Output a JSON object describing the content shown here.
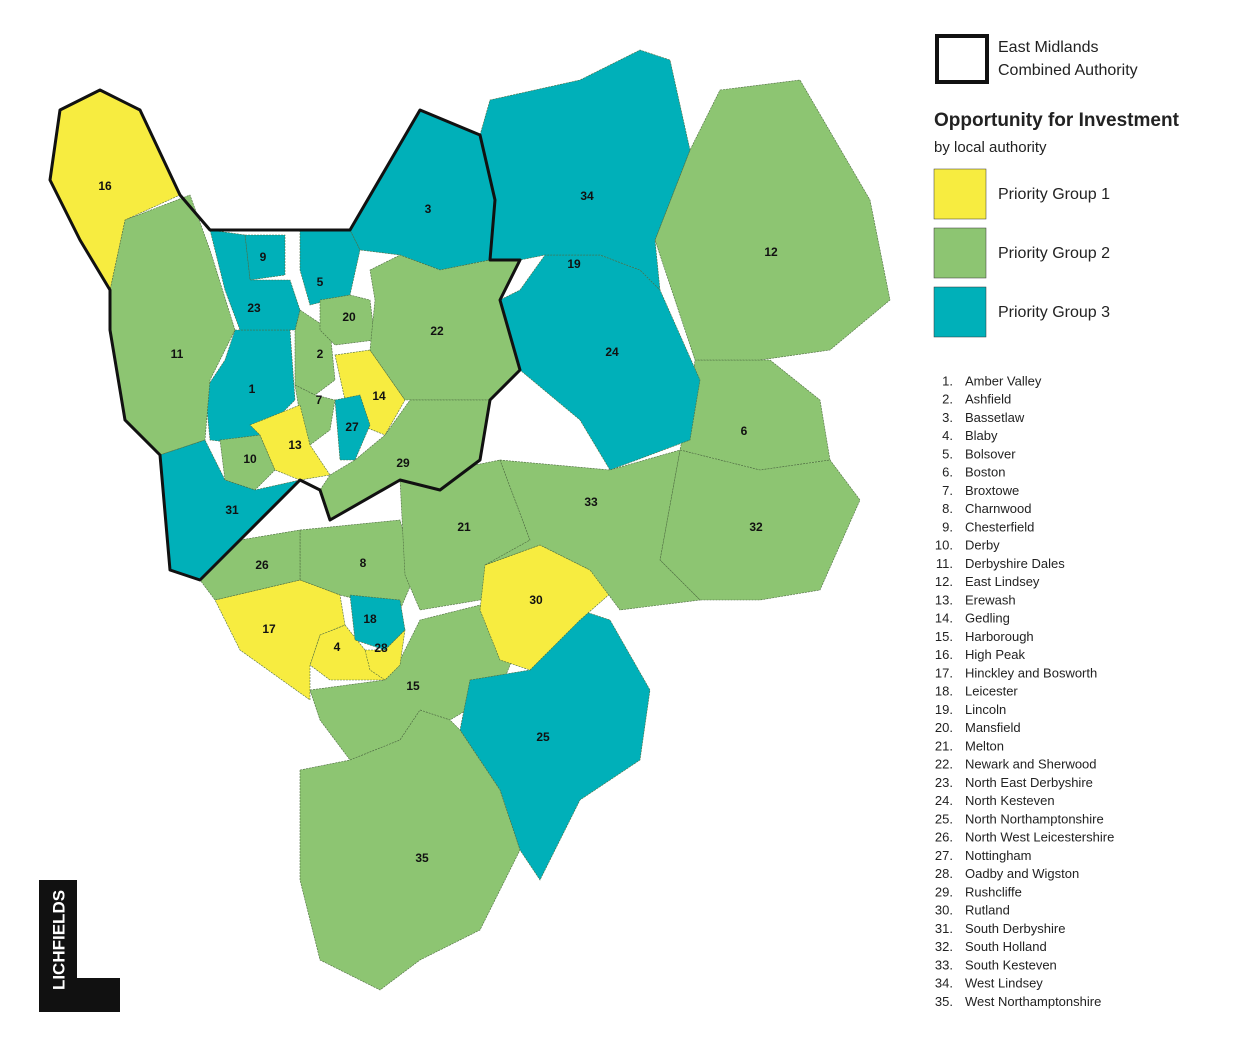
{
  "legend": {
    "boundary_label": [
      "East Midlands",
      "Combined Authority"
    ],
    "title": "Opportunity for Investment",
    "subtitle": "by local authority",
    "groups": [
      {
        "name": "Priority Group 1",
        "color": "#f7ec40"
      },
      {
        "name": "Priority Group 2",
        "color": "#8dc572"
      },
      {
        "name": "Priority Group 3",
        "color": "#00b0b9"
      }
    ]
  },
  "map": {
    "regions": [
      {
        "label": "1",
        "group": 3
      },
      {
        "label": "2",
        "group": 2
      },
      {
        "label": "3",
        "group": 3
      },
      {
        "label": "4",
        "group": 1
      },
      {
        "label": "5",
        "group": 3
      },
      {
        "label": "6",
        "group": 2
      },
      {
        "label": "7",
        "group": 2
      },
      {
        "label": "8",
        "group": 2
      },
      {
        "label": "9",
        "group": 3
      },
      {
        "label": "10",
        "group": 2
      },
      {
        "label": "11",
        "group": 2
      },
      {
        "label": "12",
        "group": 2
      },
      {
        "label": "13",
        "group": 1
      },
      {
        "label": "14",
        "group": 1
      },
      {
        "label": "15",
        "group": 2
      },
      {
        "label": "16",
        "group": 1
      },
      {
        "label": "17",
        "group": 1
      },
      {
        "label": "18",
        "group": 3
      },
      {
        "label": "19",
        "group": 3
      },
      {
        "label": "20",
        "group": 2
      },
      {
        "label": "21",
        "group": 2
      },
      {
        "label": "22",
        "group": 2
      },
      {
        "label": "23",
        "group": 3
      },
      {
        "label": "24",
        "group": 3
      },
      {
        "label": "25",
        "group": 3
      },
      {
        "label": "26",
        "group": 2
      },
      {
        "label": "27",
        "group": 3
      },
      {
        "label": "28",
        "group": 1
      },
      {
        "label": "29",
        "group": 2
      },
      {
        "label": "30",
        "group": 1
      },
      {
        "label": "31",
        "group": 3
      },
      {
        "label": "32",
        "group": 2
      },
      {
        "label": "33",
        "group": 2
      },
      {
        "label": "34",
        "group": 3
      },
      {
        "label": "35",
        "group": 2
      }
    ]
  },
  "authorities": [
    {
      "number": "1.",
      "name": "Amber Valley"
    },
    {
      "number": "2.",
      "name": "Ashfield"
    },
    {
      "number": "3.",
      "name": "Bassetlaw"
    },
    {
      "number": "4.",
      "name": "Blaby"
    },
    {
      "number": "5.",
      "name": "Bolsover"
    },
    {
      "number": "6.",
      "name": "Boston"
    },
    {
      "number": "7.",
      "name": "Broxtowe"
    },
    {
      "number": "8.",
      "name": "Charnwood"
    },
    {
      "number": "9.",
      "name": "Chesterfield"
    },
    {
      "number": "10.",
      "name": "Derby"
    },
    {
      "number": "11.",
      "name": "Derbyshire Dales"
    },
    {
      "number": "12.",
      "name": "East Lindsey"
    },
    {
      "number": "13.",
      "name": "Erewash"
    },
    {
      "number": "14.",
      "name": "Gedling"
    },
    {
      "number": "15.",
      "name": "Harborough"
    },
    {
      "number": "16.",
      "name": "High Peak"
    },
    {
      "number": "17.",
      "name": "Hinckley and Bosworth"
    },
    {
      "number": "18.",
      "name": "Leicester"
    },
    {
      "number": "19.",
      "name": "Lincoln"
    },
    {
      "number": "20.",
      "name": "Mansfield"
    },
    {
      "number": "21.",
      "name": "Melton"
    },
    {
      "number": "22.",
      "name": "Newark and Sherwood"
    },
    {
      "number": "23.",
      "name": "North East Derbyshire"
    },
    {
      "number": "24.",
      "name": "North Kesteven"
    },
    {
      "number": "25.",
      "name": "North Northamptonshire"
    },
    {
      "number": "26.",
      "name": "North West Leicestershire"
    },
    {
      "number": "27.",
      "name": "Nottingham"
    },
    {
      "number": "28.",
      "name": "Oadby and Wigston"
    },
    {
      "number": "29.",
      "name": "Rushcliffe"
    },
    {
      "number": "30.",
      "name": "Rutland"
    },
    {
      "number": "31.",
      "name": "South Derbyshire"
    },
    {
      "number": "32.",
      "name": "South Holland"
    },
    {
      "number": "33.",
      "name": "South Kesteven"
    },
    {
      "number": "34.",
      "name": "West Lindsey"
    },
    {
      "number": "35.",
      "name": "West Northamptonshire"
    }
  ],
  "logo": "LICHFIELDS"
}
